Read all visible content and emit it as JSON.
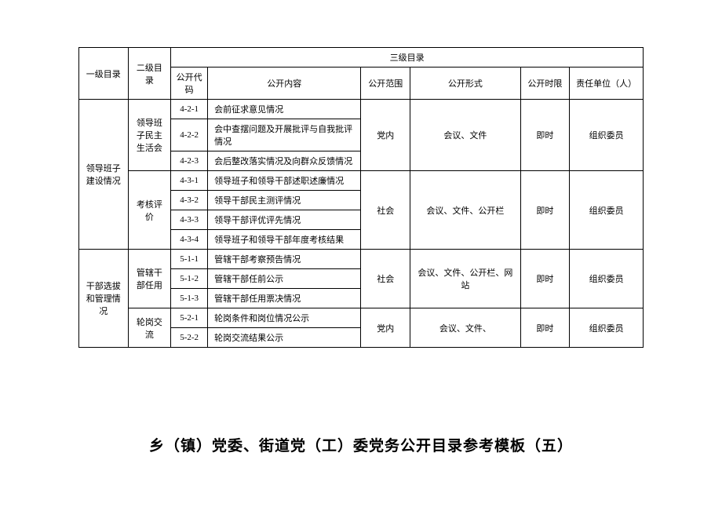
{
  "headers": {
    "level1": "一级目录",
    "level2": "二级目录",
    "level3": "三级目录",
    "code": "公开代码",
    "content": "公开内容",
    "scope": "公开范围",
    "form": "公开形式",
    "time": "公开时限",
    "responsible": "责任单位（人）"
  },
  "groups": [
    {
      "level1": "领导班子建设情况",
      "subgroups": [
        {
          "level2": "领导班子民主生活会",
          "scope": "党内",
          "form": "会议、文件",
          "time": "即时",
          "responsible": "组织委员",
          "rows": [
            {
              "code": "4-2-1",
              "content": "会前征求意见情况"
            },
            {
              "code": "4-2-2",
              "content": "会中查摆问题及开展批评与自我批评情况"
            },
            {
              "code": "4-2-3",
              "content": "会后整改落实情况及向群众反馈情况"
            }
          ]
        },
        {
          "level2": "考核评价",
          "scope": "社会",
          "form": "会议、文件、公开栏",
          "time": "即时",
          "responsible": "组织委员",
          "rows": [
            {
              "code": "4-3-1",
              "content": "领导班子和领导干部述职述廉情况"
            },
            {
              "code": "4-3-2",
              "content": "领导干部民主测评情况"
            },
            {
              "code": "4-3-3",
              "content": "领导干部评优评先情况"
            },
            {
              "code": "4-3-4",
              "content": "领导班子和领导干部年度考核结果"
            }
          ]
        }
      ]
    },
    {
      "level1": "干部选拔和管理情况",
      "subgroups": [
        {
          "level2": "管辖干部任用",
          "scope": "社会",
          "form": "会议、文件、公开栏、网站",
          "time": "即时",
          "responsible": "组织委员",
          "rows": [
            {
              "code": "5-1-1",
              "content": "管辖干部考察预告情况"
            },
            {
              "code": "5-1-2",
              "content": "管辖干部任前公示"
            },
            {
              "code": "5-1-3",
              "content": "管辖干部任用票决情况"
            }
          ]
        },
        {
          "level2": "轮岗交流",
          "scope": "党内",
          "form": "会议、文件、",
          "time": "即时",
          "responsible": "组织委员",
          "rows": [
            {
              "code": "5-2-1",
              "content": "轮岗条件和岗位情况公示"
            },
            {
              "code": "5-2-2",
              "content": "轮岗交流结果公示"
            }
          ]
        }
      ]
    }
  ],
  "doc_title": "乡（镇）党委、街道党（工）委党务公开目录参考模板（五）",
  "style": {
    "font_family": "SimSun",
    "border_color": "#000000",
    "background_color": "#ffffff",
    "text_color": "#000000",
    "header_fontsize": 11,
    "cell_fontsize": 11,
    "title_fontsize": 19
  }
}
